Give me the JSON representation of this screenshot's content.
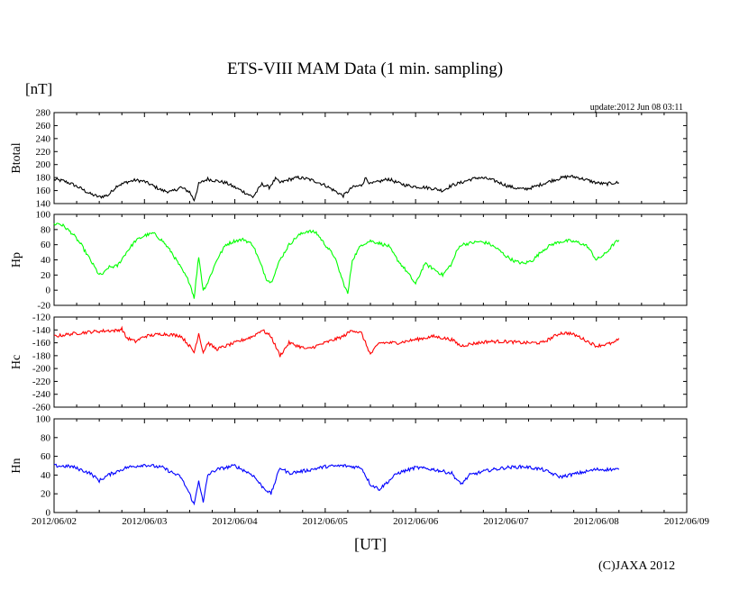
{
  "header": {
    "title": "ETS-VIII MAM Data (1 min. sampling)",
    "unit": "[nT]",
    "update": "update:2012 Jun 08 03:11"
  },
  "footer": {
    "xlabel": "[UT]",
    "copyright": "(C)JAXA 2012"
  },
  "chart_data": {
    "type": "line",
    "x_tick_labels": [
      "2012/06/02",
      "2012/06/03",
      "2012/06/04",
      "2012/06/05",
      "2012/06/06",
      "2012/06/07",
      "2012/06/08",
      "2012/06/09"
    ],
    "xlim_days": [
      0,
      7
    ],
    "xlabel": "[UT]",
    "panels": [
      {
        "name": "Btotal",
        "color": "#000000",
        "ylim": [
          140,
          280
        ],
        "yticks": [
          140,
          160,
          180,
          200,
          220,
          240,
          260,
          280
        ],
        "tick_labels": [
          "140",
          "160",
          "180",
          "200",
          "220",
          "240",
          "260",
          "280"
        ],
        "x": [
          0,
          0.1,
          0.2,
          0.3,
          0.4,
          0.5,
          0.6,
          0.7,
          0.75,
          0.8,
          0.9,
          1.0,
          1.1,
          1.2,
          1.3,
          1.4,
          1.5,
          1.55,
          1.6,
          1.7,
          1.75,
          1.8,
          1.9,
          2.0,
          2.1,
          2.2,
          2.3,
          2.38,
          2.45,
          2.5,
          2.6,
          2.7,
          2.8,
          2.9,
          3.0,
          3.1,
          3.2,
          3.3,
          3.4,
          3.45,
          3.5,
          3.6,
          3.7,
          3.8,
          3.9,
          4.0,
          4.1,
          4.2,
          4.3,
          4.4,
          4.5,
          4.6,
          4.7,
          4.8,
          4.9,
          5.0,
          5.1,
          5.2,
          5.3,
          5.4,
          5.5,
          5.6,
          5.7,
          5.8,
          5.9,
          6.0,
          6.1,
          6.2,
          6.25
        ],
        "values": [
          177,
          175,
          170,
          163,
          155,
          150,
          153,
          168,
          170,
          173,
          176,
          174,
          167,
          160,
          158,
          165,
          158,
          145,
          170,
          178,
          176,
          175,
          172,
          165,
          158,
          150,
          170,
          165,
          178,
          172,
          177,
          180,
          178,
          174,
          168,
          160,
          152,
          165,
          168,
          180,
          170,
          174,
          178,
          172,
          168,
          166,
          165,
          163,
          160,
          168,
          172,
          177,
          180,
          178,
          174,
          168,
          164,
          162,
          165,
          170,
          175,
          179,
          182,
          180,
          176,
          172,
          170,
          172,
          172
        ]
      },
      {
        "name": "Hp",
        "color": "#00ff00",
        "ylim": [
          -20,
          100
        ],
        "yticks": [
          -20,
          0,
          20,
          40,
          60,
          80,
          100
        ],
        "tick_labels": [
          "-20",
          "0",
          "20",
          "40",
          "60",
          "80",
          "100"
        ],
        "x": [
          0,
          0.05,
          0.1,
          0.2,
          0.3,
          0.4,
          0.5,
          0.55,
          0.6,
          0.7,
          0.8,
          0.9,
          1.0,
          1.1,
          1.2,
          1.3,
          1.4,
          1.5,
          1.55,
          1.6,
          1.65,
          1.7,
          1.8,
          1.9,
          2.0,
          2.1,
          2.2,
          2.3,
          2.35,
          2.4,
          2.5,
          2.6,
          2.7,
          2.8,
          2.9,
          3.0,
          3.1,
          3.2,
          3.25,
          3.3,
          3.4,
          3.5,
          3.6,
          3.7,
          3.8,
          3.9,
          4.0,
          4.1,
          4.2,
          4.3,
          4.4,
          4.45,
          4.5,
          4.6,
          4.7,
          4.8,
          4.9,
          5.0,
          5.1,
          5.2,
          5.3,
          5.4,
          5.5,
          5.6,
          5.7,
          5.8,
          5.9,
          6.0,
          6.1,
          6.2,
          6.25
        ],
        "values": [
          87,
          88,
          85,
          75,
          60,
          40,
          20,
          22,
          30,
          32,
          50,
          65,
          72,
          75,
          65,
          50,
          30,
          10,
          -10,
          45,
          0,
          10,
          40,
          60,
          65,
          67,
          60,
          30,
          15,
          10,
          40,
          60,
          72,
          78,
          76,
          60,
          45,
          10,
          -5,
          40,
          60,
          65,
          62,
          58,
          40,
          25,
          8,
          35,
          28,
          20,
          35,
          50,
          60,
          62,
          64,
          62,
          55,
          45,
          38,
          35,
          40,
          52,
          60,
          64,
          65,
          63,
          58,
          40,
          48,
          62,
          66
        ]
      },
      {
        "name": "Hc",
        "color": "#ff0000",
        "ylim": [
          -260,
          -120
        ],
        "yticks": [
          -260,
          -240,
          -220,
          -200,
          -180,
          -160,
          -140,
          -120
        ],
        "tick_labels": [
          "-260",
          "-240",
          "-220",
          "-200",
          "-180",
          "-160",
          "-140",
          "-120"
        ],
        "x": [
          0,
          0.2,
          0.4,
          0.6,
          0.7,
          0.75,
          0.8,
          0.9,
          1.0,
          1.2,
          1.4,
          1.5,
          1.55,
          1.6,
          1.65,
          1.7,
          1.8,
          1.9,
          2.0,
          2.2,
          2.3,
          2.4,
          2.5,
          2.6,
          2.8,
          3.0,
          3.2,
          3.3,
          3.4,
          3.5,
          3.6,
          3.8,
          4.0,
          4.2,
          4.4,
          4.5,
          4.6,
          4.8,
          5.0,
          5.2,
          5.4,
          5.6,
          5.7,
          5.8,
          6.0,
          6.2,
          6.25
        ],
        "values": [
          -150,
          -146,
          -143,
          -141,
          -141,
          -138,
          -152,
          -158,
          -150,
          -146,
          -149,
          -165,
          -175,
          -145,
          -175,
          -160,
          -170,
          -165,
          -160,
          -150,
          -140,
          -150,
          -180,
          -160,
          -170,
          -160,
          -150,
          -140,
          -145,
          -178,
          -160,
          -160,
          -155,
          -150,
          -155,
          -165,
          -162,
          -158,
          -158,
          -160,
          -160,
          -145,
          -145,
          -150,
          -165,
          -160,
          -153
        ]
      },
      {
        "name": "Hn",
        "color": "#0000ff",
        "ylim": [
          0,
          100
        ],
        "yticks": [
          0,
          20,
          40,
          60,
          80,
          100
        ],
        "tick_labels": [
          "0",
          "20",
          "40",
          "60",
          "80",
          "100"
        ],
        "x": [
          0,
          0.2,
          0.4,
          0.5,
          0.6,
          0.8,
          1.0,
          1.2,
          1.4,
          1.5,
          1.55,
          1.6,
          1.65,
          1.7,
          1.8,
          2.0,
          2.2,
          2.3,
          2.4,
          2.5,
          2.6,
          2.8,
          3.0,
          3.2,
          3.4,
          3.5,
          3.6,
          3.8,
          4.0,
          4.2,
          4.4,
          4.5,
          4.6,
          4.8,
          5.0,
          5.2,
          5.4,
          5.6,
          5.8,
          6.0,
          6.2,
          6.25
        ],
        "values": [
          50,
          49,
          42,
          34,
          40,
          48,
          51,
          48,
          38,
          20,
          8,
          35,
          10,
          40,
          46,
          50,
          40,
          28,
          20,
          48,
          42,
          45,
          49,
          50,
          48,
          30,
          25,
          42,
          48,
          46,
          42,
          30,
          40,
          45,
          48,
          49,
          46,
          38,
          42,
          46,
          46,
          46
        ]
      }
    ]
  }
}
